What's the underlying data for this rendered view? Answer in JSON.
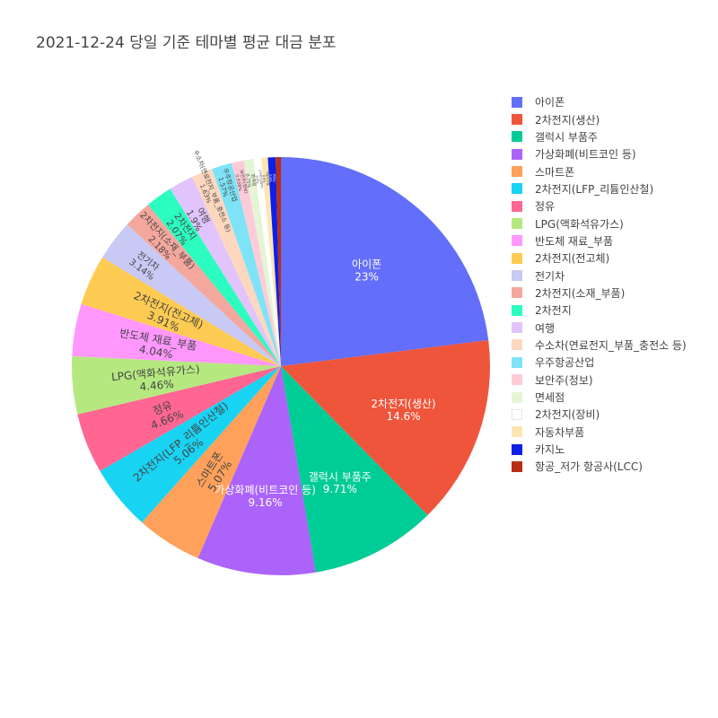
{
  "chart_data": {
    "type": "pie",
    "title": "2021-12-24 당일 기준 테마별 평균 대금 분포",
    "legend_position": "right",
    "sort": "descending",
    "direction": "clockwise",
    "slices": [
      {
        "label": "아이폰",
        "percent": 23,
        "percent_label": "23%",
        "color": "#636efa"
      },
      {
        "label": "2차전지(생산)",
        "percent": 14.6,
        "percent_label": "14.6%",
        "color": "#EF553B"
      },
      {
        "label": "갤럭시 부품주",
        "percent": 9.71,
        "percent_label": "9.71%",
        "color": "#00cc96"
      },
      {
        "label": "가상화폐(비트코인 등)",
        "percent": 9.16,
        "percent_label": "9.16%",
        "color": "#ab63fa"
      },
      {
        "label": "스마트폰",
        "percent": 5.07,
        "percent_label": "5.07%",
        "color": "#FFA15A"
      },
      {
        "label": "2차전지(LFP_리튬인산철)",
        "percent": 5.06,
        "percent_label": "5.06%",
        "color": "#19d3f3"
      },
      {
        "label": "정유",
        "percent": 4.66,
        "percent_label": "4.66%",
        "color": "#FF6692"
      },
      {
        "label": "LPG(액화석유가스)",
        "percent": 4.46,
        "percent_label": "4.46%",
        "color": "#B6E880"
      },
      {
        "label": "반도체 재료_부품",
        "percent": 4.04,
        "percent_label": "4.04%",
        "color": "#FF97FF"
      },
      {
        "label": "2차전지(전고체)",
        "percent": 3.91,
        "percent_label": "3.91%",
        "color": "#FECB52"
      },
      {
        "label": "전기차",
        "percent": 3.14,
        "percent_label": "3.14%",
        "color": "#c8c9f4"
      },
      {
        "label": "2차전지(소재_부품)",
        "percent": 2.18,
        "percent_label": "2.18%",
        "color": "#f4a79d"
      },
      {
        "label": "2차전지",
        "percent": 2.07,
        "percent_label": "2.07%",
        "color": "#2dfcc0"
      },
      {
        "label": "여행",
        "percent": 1.9,
        "percent_label": "1.9%",
        "color": "#e0c4fb"
      },
      {
        "label": "수소차(연료전지_부품_충전소 등)",
        "percent": 1.63,
        "percent_label": "1.63%",
        "color": "#fdd8bf"
      },
      {
        "label": "우주항공산업",
        "percent": 1.57,
        "percent_label": "1.57%",
        "color": "#7ee3f6"
      },
      {
        "label": "보안주(정보)",
        "percent": 0.938,
        "percent_label": "0.938%",
        "color": "#fecbd8"
      },
      {
        "label": "면세점",
        "percent": 0.75,
        "percent_label": "0.75%",
        "color": "#e4f5d5"
      },
      {
        "label": "2차전지(장비)",
        "percent": 0.6,
        "percent_label": "0.6%",
        "color": "#ffffff"
      },
      {
        "label": "자동차부품",
        "percent": 0.5,
        "percent_label": "0.5%",
        "color": "#fee6b2"
      },
      {
        "label": "카지노",
        "percent": 0.6,
        "percent_label": "0.6%",
        "color": "#0d1fe8"
      },
      {
        "label": "항공_저가 항공사(LCC)",
        "percent": 0.4,
        "percent_label": "0.4%",
        "color": "#b82e16"
      }
    ]
  }
}
